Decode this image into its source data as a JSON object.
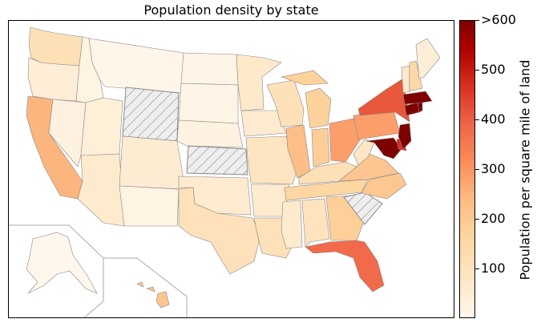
{
  "title": "Population density by state",
  "colorbar": {
    "label": "Population per square mile of land",
    "ticks": [
      "100",
      "200",
      "300",
      "400",
      "500",
      ">600"
    ],
    "tick_values": [
      100,
      200,
      300,
      400,
      500,
      600
    ],
    "range": [
      0,
      600
    ],
    "colormap": "OrRd"
  },
  "colors": {
    "no_data_fill": "#eeeeee",
    "border": "#888888"
  },
  "states": [
    {
      "name": "Washington",
      "density": 110
    },
    {
      "name": "Oregon",
      "density": 42
    },
    {
      "name": "California",
      "density": 250
    },
    {
      "name": "Nevada",
      "density": 27
    },
    {
      "name": "Idaho",
      "density": 21
    },
    {
      "name": "Montana",
      "density": 7
    },
    {
      "name": "Wyoming",
      "density": null
    },
    {
      "name": "Utah",
      "density": 38
    },
    {
      "name": "Arizona",
      "density": 60
    },
    {
      "name": "Colorado",
      "density": 52
    },
    {
      "name": "New Mexico",
      "density": 17
    },
    {
      "name": "North Dakota",
      "density": 11
    },
    {
      "name": "South Dakota",
      "density": 11
    },
    {
      "name": "Nebraska",
      "density": 25
    },
    {
      "name": "Kansas",
      "density": null
    },
    {
      "name": "Oklahoma",
      "density": 57
    },
    {
      "name": "Texas",
      "density": 105
    },
    {
      "name": "Minnesota",
      "density": 69
    },
    {
      "name": "Iowa",
      "density": 56
    },
    {
      "name": "Missouri",
      "density": 88
    },
    {
      "name": "Arkansas",
      "density": 57
    },
    {
      "name": "Louisiana",
      "density": 107
    },
    {
      "name": "Wisconsin",
      "density": 106
    },
    {
      "name": "Illinois",
      "density": 230
    },
    {
      "name": "Michigan",
      "density": 175
    },
    {
      "name": "Indiana",
      "density": 185
    },
    {
      "name": "Ohio",
      "density": 285
    },
    {
      "name": "Kentucky",
      "density": 112
    },
    {
      "name": "Tennessee",
      "density": 160
    },
    {
      "name": "Mississippi",
      "density": 63
    },
    {
      "name": "Alabama",
      "density": 95
    },
    {
      "name": "Georgia",
      "density": 180
    },
    {
      "name": "Florida",
      "density": 380
    },
    {
      "name": "South Carolina",
      "density": null
    },
    {
      "name": "North Carolina",
      "density": 205
    },
    {
      "name": "Virginia",
      "density": 210
    },
    {
      "name": "West Virginia",
      "density": 77
    },
    {
      "name": "Pennsylvania",
      "density": 285
    },
    {
      "name": "New York",
      "density": 410
    },
    {
      "name": "Maryland",
      "density": 610
    },
    {
      "name": "Delaware",
      "density": 470
    },
    {
      "name": "New Jersey",
      "density": 1200
    },
    {
      "name": "Connecticut",
      "density": 740
    },
    {
      "name": "Rhode Island",
      "density": 1000
    },
    {
      "name": "Massachusetts",
      "density": 870
    },
    {
      "name": "Vermont",
      "density": 68
    },
    {
      "name": "New Hampshire",
      "density": 147
    },
    {
      "name": "Maine",
      "density": 43
    },
    {
      "name": "Alaska",
      "density": 1
    },
    {
      "name": "Hawaii",
      "density": 211
    }
  ]
}
